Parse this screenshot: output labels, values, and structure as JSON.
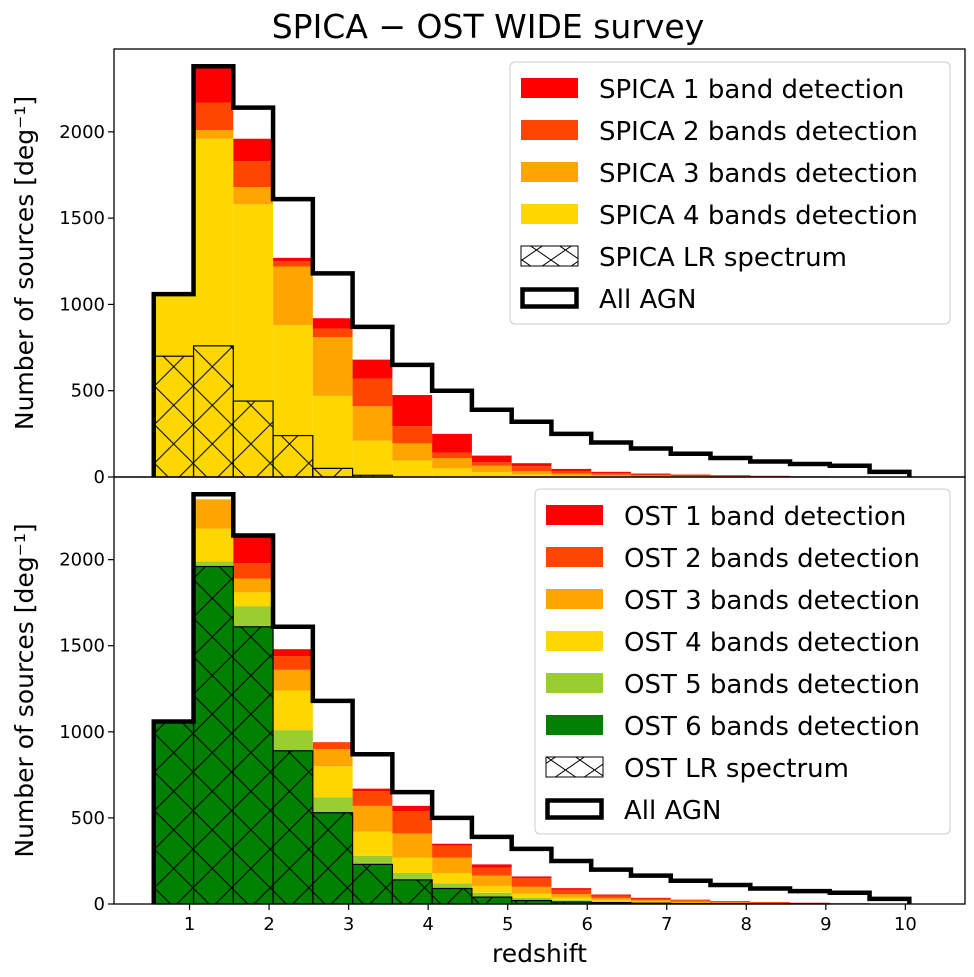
{
  "figure_title": "SPICA − OST    WIDE survey",
  "colors": {
    "band1": "#ff0000",
    "band2": "#ff4500",
    "band3": "#ffa500",
    "band4": "#ffd700",
    "band5": "#9acd32",
    "band6": "#008000",
    "all_agn": "#000000"
  },
  "chart_data": [
    {
      "id": "spica",
      "type": "stacked-histogram",
      "title": "SPICA − OST    WIDE survey",
      "xlabel": "",
      "ylabel": "Number of sources [deg⁻¹]",
      "xlim": [
        0.05,
        10.75
      ],
      "ylim": [
        0,
        2480
      ],
      "xticks": [],
      "yticks": [
        0,
        500,
        1000,
        1500,
        2000
      ],
      "bin_edges": [
        0.55,
        1.05,
        1.55,
        2.05,
        2.55,
        3.05,
        3.55,
        4.05,
        4.55,
        5.05,
        5.55,
        6.05,
        6.55,
        7.05,
        7.55,
        8.05,
        8.55,
        9.05,
        9.55,
        10.05
      ],
      "detection_series": [
        {
          "name": "SPICA 4 bands detection",
          "color_key": "band4",
          "values": [
            1060,
            1960,
            1580,
            880,
            470,
            210,
            95,
            50,
            28,
            15,
            8,
            5,
            3,
            2,
            1,
            1,
            0,
            0,
            0
          ]
        },
        {
          "name": "SPICA 3 bands detection",
          "color_key": "band3",
          "values": [
            0,
            50,
            100,
            340,
            340,
            200,
            100,
            60,
            38,
            20,
            12,
            8,
            5,
            3,
            2,
            1,
            1,
            0,
            0
          ]
        },
        {
          "name": "SPICA 2 bands detection",
          "color_key": "band2",
          "values": [
            0,
            160,
            150,
            30,
            50,
            160,
            100,
            30,
            20,
            28,
            14,
            9,
            6,
            4,
            3,
            2,
            1,
            1,
            0
          ]
        },
        {
          "name": "SPICA 1 band detection",
          "color_key": "band1",
          "values": [
            0,
            200,
            130,
            20,
            60,
            110,
            180,
            110,
            38,
            17,
            13,
            8,
            6,
            5,
            4,
            3,
            2,
            1,
            1
          ]
        }
      ],
      "lr_spectrum": {
        "name": "SPICA LR spectrum",
        "values": [
          700,
          760,
          440,
          240,
          50,
          10,
          0,
          0,
          0,
          0,
          0,
          0,
          0,
          0,
          0,
          0,
          0,
          0,
          0
        ]
      },
      "all_agn": {
        "name": "All AGN",
        "values": [
          1060,
          2380,
          2140,
          1610,
          1180,
          870,
          650,
          500,
          390,
          320,
          250,
          200,
          165,
          135,
          110,
          90,
          75,
          65,
          30
        ]
      },
      "legend": {
        "placement": "upper right",
        "entries": [
          "SPICA 1 band detection",
          "SPICA 2 bands detection",
          "SPICA 3 bands detection",
          "SPICA 4 bands detection",
          "SPICA LR spectrum",
          "All AGN"
        ]
      }
    },
    {
      "id": "ost",
      "type": "stacked-histogram",
      "title": "",
      "xlabel": "redshift",
      "ylabel": "Number of sources [deg⁻¹]",
      "xlim": [
        0.05,
        10.75
      ],
      "ylim": [
        0,
        2480
      ],
      "xticks": [
        1,
        2,
        3,
        4,
        5,
        6,
        7,
        8,
        9,
        10
      ],
      "yticks": [
        0,
        500,
        1000,
        1500,
        2000
      ],
      "bin_edges": [
        0.55,
        1.05,
        1.55,
        2.05,
        2.55,
        3.05,
        3.55,
        4.05,
        4.55,
        5.05,
        5.55,
        6.05,
        6.55,
        7.05,
        7.55,
        8.05,
        8.55,
        9.05,
        9.55,
        10.05
      ],
      "detection_series": [
        {
          "name": "OST 6 bands detection",
          "color_key": "band6",
          "values": [
            1060,
            1960,
            1610,
            890,
            530,
            230,
            140,
            90,
            40,
            20,
            12,
            8,
            5,
            3,
            2,
            1,
            1,
            0,
            0
          ]
        },
        {
          "name": "OST 5 bands detection",
          "color_key": "band5",
          "values": [
            0,
            30,
            120,
            120,
            90,
            50,
            40,
            30,
            25,
            15,
            10,
            6,
            4,
            3,
            2,
            1,
            1,
            0,
            0
          ]
        },
        {
          "name": "OST 4 bands detection",
          "color_key": "band4",
          "values": [
            0,
            190,
            80,
            230,
            180,
            140,
            90,
            60,
            40,
            25,
            15,
            8,
            5,
            3,
            2,
            1,
            1,
            1,
            0
          ]
        },
        {
          "name": "OST 3 bands detection",
          "color_key": "band3",
          "values": [
            0,
            170,
            80,
            120,
            100,
            150,
            140,
            90,
            60,
            40,
            20,
            12,
            8,
            5,
            3,
            2,
            1,
            1,
            0
          ]
        },
        {
          "name": "OST 2 bands detection",
          "color_key": "band2",
          "values": [
            0,
            0,
            90,
            80,
            40,
            85,
            130,
            70,
            45,
            50,
            25,
            15,
            10,
            8,
            6,
            4,
            3,
            2,
            1
          ]
        },
        {
          "name": "OST 1 band detection",
          "color_key": "band1",
          "values": [
            0,
            0,
            150,
            40,
            0,
            15,
            30,
            10,
            20,
            10,
            10,
            6,
            4,
            3,
            2,
            2,
            1,
            1,
            1
          ]
        }
      ],
      "lr_spectrum": {
        "name": "OST LR spectrum",
        "values": [
          1060,
          1960,
          1610,
          890,
          530,
          230,
          140,
          90,
          40,
          20,
          12,
          8,
          5,
          3,
          2,
          1,
          1,
          0,
          0
        ]
      },
      "all_agn": {
        "name": "All AGN",
        "values": [
          1060,
          2380,
          2140,
          1610,
          1180,
          870,
          650,
          500,
          390,
          320,
          250,
          200,
          165,
          135,
          110,
          90,
          75,
          65,
          30
        ]
      },
      "legend": {
        "placement": "upper right",
        "entries": [
          "OST 1 band detection",
          "OST 2 bands detection",
          "OST 3 bands detection",
          "OST 4 bands detection",
          "OST 5 bands detection",
          "OST 6 bands detection",
          "OST LR spectrum",
          "All AGN"
        ]
      }
    }
  ]
}
